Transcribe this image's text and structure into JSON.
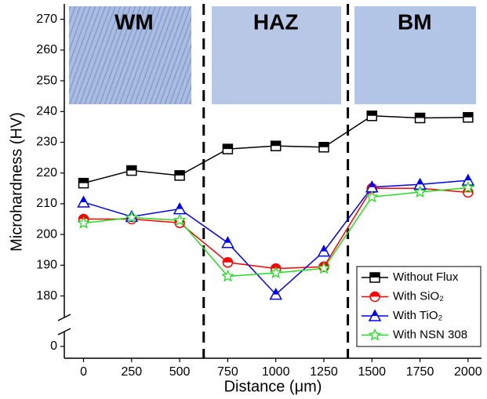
{
  "chart_data": {
    "type": "line",
    "x_label": "Distance (μm)",
    "y_label": "Microhardness (HV)",
    "x": [
      0,
      250,
      500,
      750,
      1000,
      1250,
      1500,
      1750,
      2000
    ],
    "series": [
      {
        "name": "Without Flux",
        "color": "#000000",
        "marker": "square",
        "values": [
          216.7,
          220.8,
          219.2,
          227.8,
          228.8,
          228.4,
          238.6,
          237.9,
          238.1
        ]
      },
      {
        "name": "With SiO₂",
        "color": "#ff0000",
        "marker": "circle",
        "values": [
          205,
          205,
          203.8,
          190.9,
          188.9,
          189.5,
          215,
          215,
          213.7
        ]
      },
      {
        "name": "With TiO₂",
        "color": "#0000ff",
        "marker": "triangle",
        "values": [
          210.5,
          205.8,
          208.3,
          197.3,
          180.5,
          194.5,
          215.4,
          216.3,
          217.6
        ]
      },
      {
        "name": "With NSN 308",
        "color": "#22dd22",
        "marker": "star",
        "values": [
          203.7,
          205.5,
          204.6,
          186.4,
          187.5,
          189,
          212.2,
          213.8,
          215.2
        ]
      }
    ],
    "xlim": [
      -100,
      2070
    ],
    "xticks": [
      0,
      250,
      500,
      750,
      1000,
      1250,
      1500,
      1750,
      2000
    ],
    "ylim": [
      -4,
      275
    ],
    "y_break": [
      5,
      173
    ],
    "yticks": [
      0,
      180,
      190,
      200,
      210,
      220,
      230,
      240,
      250,
      260,
      270
    ],
    "region_boundaries": [
      625,
      1375
    ],
    "region_labels": [
      "WM",
      "HAZ",
      "BM"
    ],
    "legend": "lower right"
  }
}
